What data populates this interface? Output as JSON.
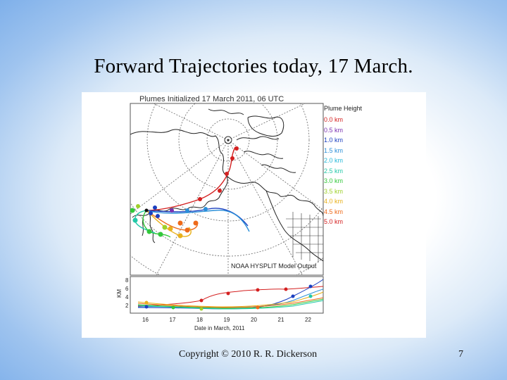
{
  "slide": {
    "title": "Forward Trajectories today, 17 March.",
    "footer": "Copyright © 2010 R. R. Dickerson",
    "page_number": "7"
  },
  "figure": {
    "title": "Plumes Initialized 17 March 2011, 06 UTC",
    "source_label": "NOAA HYSPLIT Model Output",
    "legend_title": "Plume Height",
    "legend": [
      {
        "label": "0.0 km",
        "color": "#d42020"
      },
      {
        "label": "0.5 km",
        "color": "#7a2fb0"
      },
      {
        "label": "1.0 km",
        "color": "#1a3fc0"
      },
      {
        "label": "1.5 km",
        "color": "#2a8fd8"
      },
      {
        "label": "2.0 km",
        "color": "#25b8d8"
      },
      {
        "label": "2.5 km",
        "color": "#22c8a8"
      },
      {
        "label": "3.0 km",
        "color": "#32c83a"
      },
      {
        "label": "3.5 km",
        "color": "#9ed02a"
      },
      {
        "label": "4.0 km",
        "color": "#e8b01a"
      },
      {
        "label": "4.5 km",
        "color": "#ee6a1a"
      },
      {
        "label": "5.0 km",
        "color": "#d42020"
      }
    ],
    "height_panel": {
      "ylabel": "KM",
      "yticks": [
        "8",
        "6",
        "4",
        "2"
      ],
      "xticks": [
        "16",
        "17",
        "18",
        "19",
        "20",
        "21",
        "22"
      ],
      "xlabel": "Date in March, 2011"
    }
  }
}
